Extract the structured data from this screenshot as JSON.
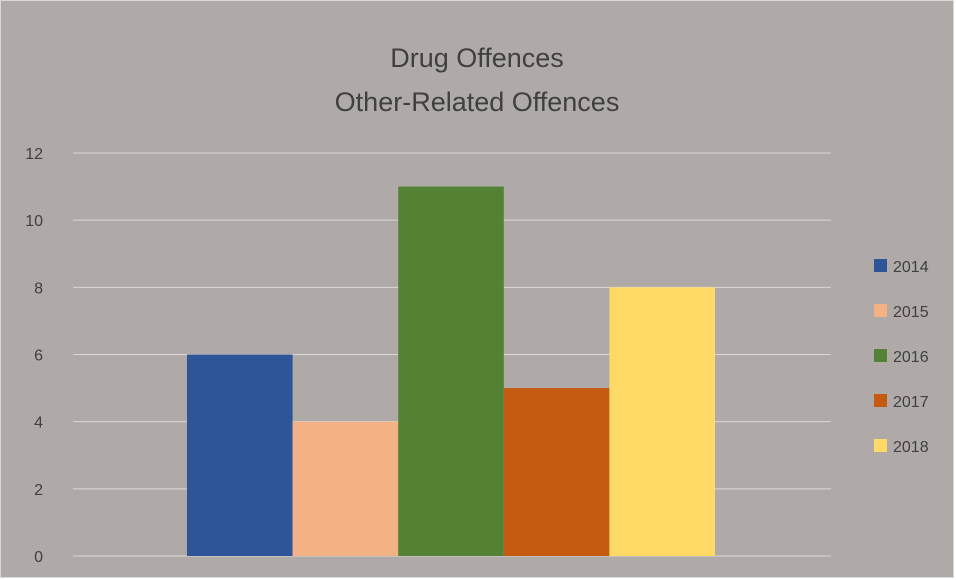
{
  "chart_data": {
    "type": "bar",
    "title": [
      "Drug Offences",
      "Other-Related Offences"
    ],
    "categories": [
      "Other-Related Offences"
    ],
    "series": [
      {
        "name": "2014",
        "values": [
          6
        ],
        "color": "#2e5597"
      },
      {
        "name": "2015",
        "values": [
          4
        ],
        "color": "#f4b183"
      },
      {
        "name": "2016",
        "values": [
          11
        ],
        "color": "#548235"
      },
      {
        "name": "2017",
        "values": [
          5
        ],
        "color": "#c55a11"
      },
      {
        "name": "2018",
        "values": [
          8
        ],
        "color": "#ffd966"
      }
    ],
    "y_ticks": [
      "0",
      "2",
      "4",
      "6",
      "8",
      "10",
      "12"
    ],
    "ylim": [
      0,
      12
    ],
    "grid": true,
    "legend_position": "right",
    "background_color": "#afaaa7",
    "text_color": "#404040",
    "gridline_color": "#d9d9d9"
  }
}
